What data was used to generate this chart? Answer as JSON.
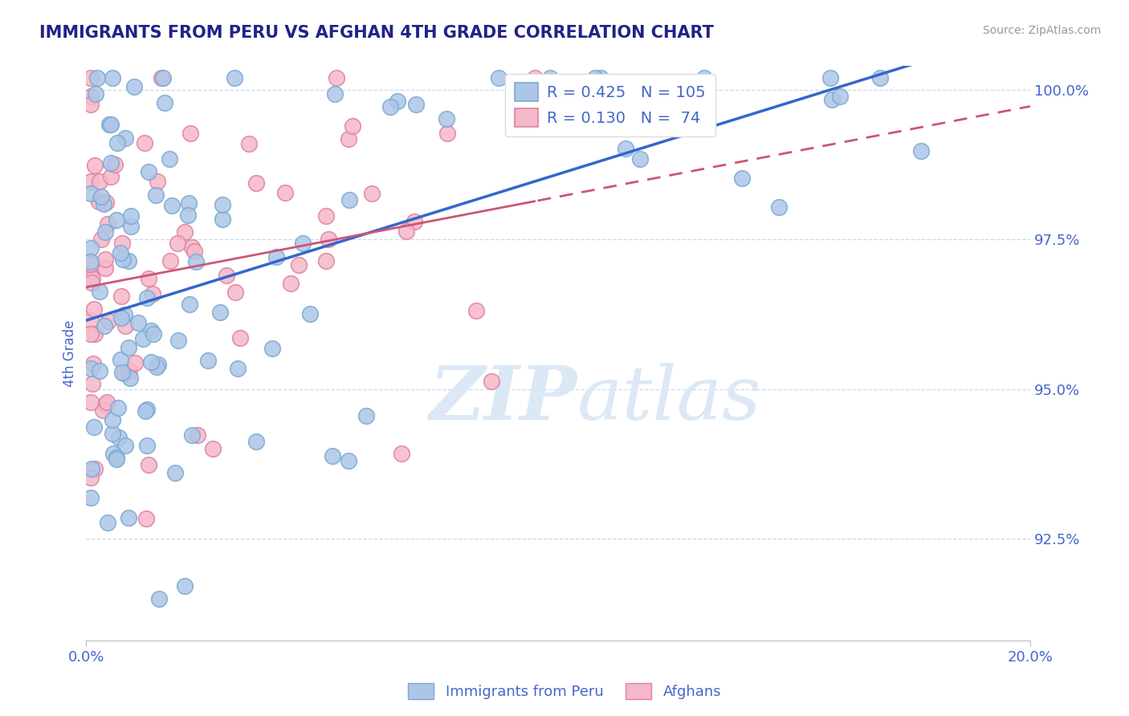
{
  "title": "IMMIGRANTS FROM PERU VS AFGHAN 4TH GRADE CORRELATION CHART",
  "source": "Source: ZipAtlas.com",
  "ylabel": "4th Grade",
  "yticks": [
    0.925,
    0.95,
    0.975,
    1.0
  ],
  "ytick_labels": [
    "92.5%",
    "95.0%",
    "97.5%",
    "100.0%"
  ],
  "xlim": [
    0.0,
    0.2
  ],
  "ylim": [
    0.908,
    1.004
  ],
  "blue_color": "#adc6e8",
  "blue_edge": "#7aaad0",
  "pink_color": "#f5b8c8",
  "pink_edge": "#e080a0",
  "trend_blue": "#3366cc",
  "trend_pink": "#cc5577",
  "text_blue": "#4466cc",
  "watermark_color": "#dce8f5",
  "legend_r1": "R = 0.425",
  "legend_n1": "N = 105",
  "legend_r2": "R = 0.130",
  "legend_n2": "N =  74",
  "blue_intercept": 0.965,
  "blue_slope": 0.175,
  "pink_intercept": 0.971,
  "pink_slope": 0.095
}
